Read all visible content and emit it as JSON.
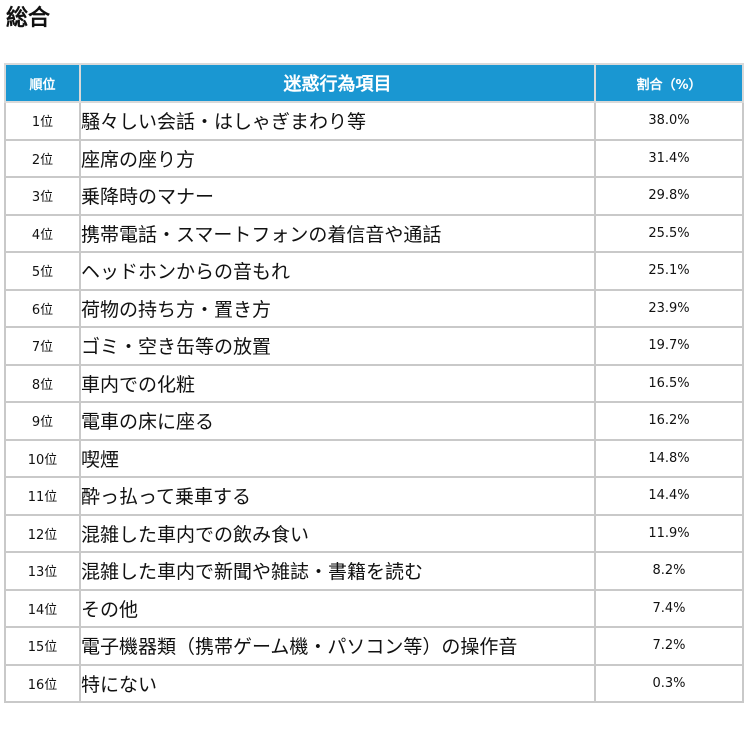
{
  "page": {
    "title": "総合"
  },
  "table": {
    "headers": {
      "rank": "順位",
      "item": "迷惑行為項目",
      "percent": "割合（%）"
    },
    "rows": [
      {
        "rank": "1位",
        "item": "騒々しい会話・はしゃぎまわり等",
        "percent": "38.0%"
      },
      {
        "rank": "2位",
        "item": "座席の座り方",
        "percent": "31.4%"
      },
      {
        "rank": "3位",
        "item": "乗降時のマナー",
        "percent": "29.8%"
      },
      {
        "rank": "4位",
        "item": "携帯電話・スマートフォンの着信音や通話",
        "percent": "25.5%"
      },
      {
        "rank": "5位",
        "item": "ヘッドホンからの音もれ",
        "percent": "25.1%"
      },
      {
        "rank": "6位",
        "item": "荷物の持ち方・置き方",
        "percent": "23.9%"
      },
      {
        "rank": "7位",
        "item": "ゴミ・空き缶等の放置",
        "percent": "19.7%"
      },
      {
        "rank": "8位",
        "item": "車内での化粧",
        "percent": "16.5%"
      },
      {
        "rank": "9位",
        "item": "電車の床に座る",
        "percent": "16.2%"
      },
      {
        "rank": "10位",
        "item": "喫煙",
        "percent": "14.8%"
      },
      {
        "rank": "11位",
        "item": "酔っ払って乗車する",
        "percent": "14.4%"
      },
      {
        "rank": "12位",
        "item": "混雑した車内での飲み食い",
        "percent": "11.9%"
      },
      {
        "rank": "13位",
        "item": "混雑した車内で新聞や雑誌・書籍を読む",
        "percent": "8.2%"
      },
      {
        "rank": "14位",
        "item": "その他",
        "percent": "7.4%"
      },
      {
        "rank": "15位",
        "item": "電子機器類（携帯ゲーム機・パソコン等）の操作音",
        "percent": "7.2%"
      },
      {
        "rank": "16位",
        "item": "特にない",
        "percent": "0.3%"
      }
    ]
  }
}
